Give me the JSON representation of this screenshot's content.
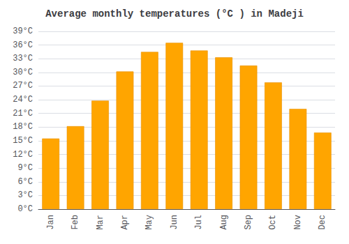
{
  "chart_data": {
    "type": "bar",
    "title": "Average monthly temperatures (°C ) in Madeji",
    "categories": [
      "Jan",
      "Feb",
      "Mar",
      "Apr",
      "May",
      "Jun",
      "Jul",
      "Aug",
      "Sep",
      "Oct",
      "Nov",
      "Dec"
    ],
    "values": [
      15.5,
      18.2,
      23.8,
      30.2,
      34.5,
      36.5,
      34.8,
      33.3,
      31.5,
      27.8,
      22.0,
      16.8
    ],
    "color": "#FFA500",
    "ylim": [
      0,
      39
    ],
    "yticks": [
      {
        "value": 0,
        "label": "0°C"
      },
      {
        "value": 3,
        "label": "3°C"
      },
      {
        "value": 6,
        "label": "6°C"
      },
      {
        "value": 9,
        "label": "9°C"
      },
      {
        "value": 12,
        "label": "12°C"
      },
      {
        "value": 15,
        "label": "15°C"
      },
      {
        "value": 18,
        "label": "18°C"
      },
      {
        "value": 21,
        "label": "21°C"
      },
      {
        "value": 24,
        "label": "24°C"
      },
      {
        "value": 27,
        "label": "27°C"
      },
      {
        "value": 30,
        "label": "30°C"
      },
      {
        "value": 33,
        "label": "33°C"
      },
      {
        "value": 36,
        "label": "36°C"
      },
      {
        "value": 39,
        "label": "39°C"
      }
    ],
    "grid": true
  }
}
